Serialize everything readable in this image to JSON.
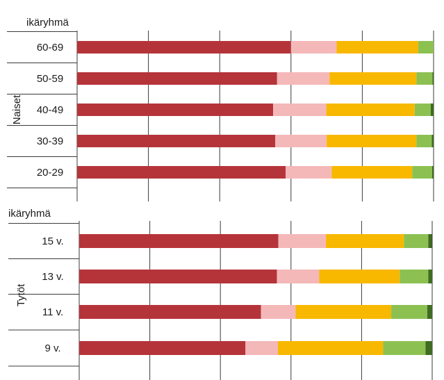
{
  "chart_data": [
    {
      "type": "bar",
      "orientation": "horizontal",
      "stacked": true,
      "header": "ikäryhmä",
      "group_label": "Naiset",
      "categories": [
        "60-69",
        "50-59",
        "40-49",
        "30-39",
        "20-29"
      ],
      "segment_colors": [
        "#b5343a",
        "#f4b8b9",
        "#f8b800",
        "#8cc152",
        "#3f6b22"
      ],
      "xlim": [
        0,
        100
      ],
      "grid": true,
      "stacks": [
        [
          60.0,
          12.8,
          22.9,
          4.3,
          0.0
        ],
        [
          56.1,
          14.7,
          24.4,
          4.5,
          0.3
        ],
        [
          55.0,
          14.9,
          24.8,
          4.5,
          0.8
        ],
        [
          55.6,
          14.4,
          25.2,
          4.3,
          0.5
        ],
        [
          58.5,
          12.9,
          22.6,
          5.6,
          0.4
        ]
      ]
    },
    {
      "type": "bar",
      "orientation": "horizontal",
      "stacked": true,
      "header": "ikäryhmä",
      "group_label": "Tytöt",
      "categories": [
        "15 v.",
        "13 v.",
        "11 v.",
        "9 v."
      ],
      "segment_colors": [
        "#b5343a",
        "#f4b8b9",
        "#f8b800",
        "#8cc152",
        "#3f6b22"
      ],
      "xlim": [
        0,
        100
      ],
      "grid": true,
      "stacks": [
        [
          56.4,
          13.5,
          22.1,
          6.9,
          1.0
        ],
        [
          56.0,
          12.0,
          22.8,
          8.1,
          1.1
        ],
        [
          51.5,
          9.8,
          27.1,
          10.2,
          1.4
        ],
        [
          47.1,
          9.2,
          29.8,
          12.0,
          1.9
        ]
      ]
    }
  ]
}
